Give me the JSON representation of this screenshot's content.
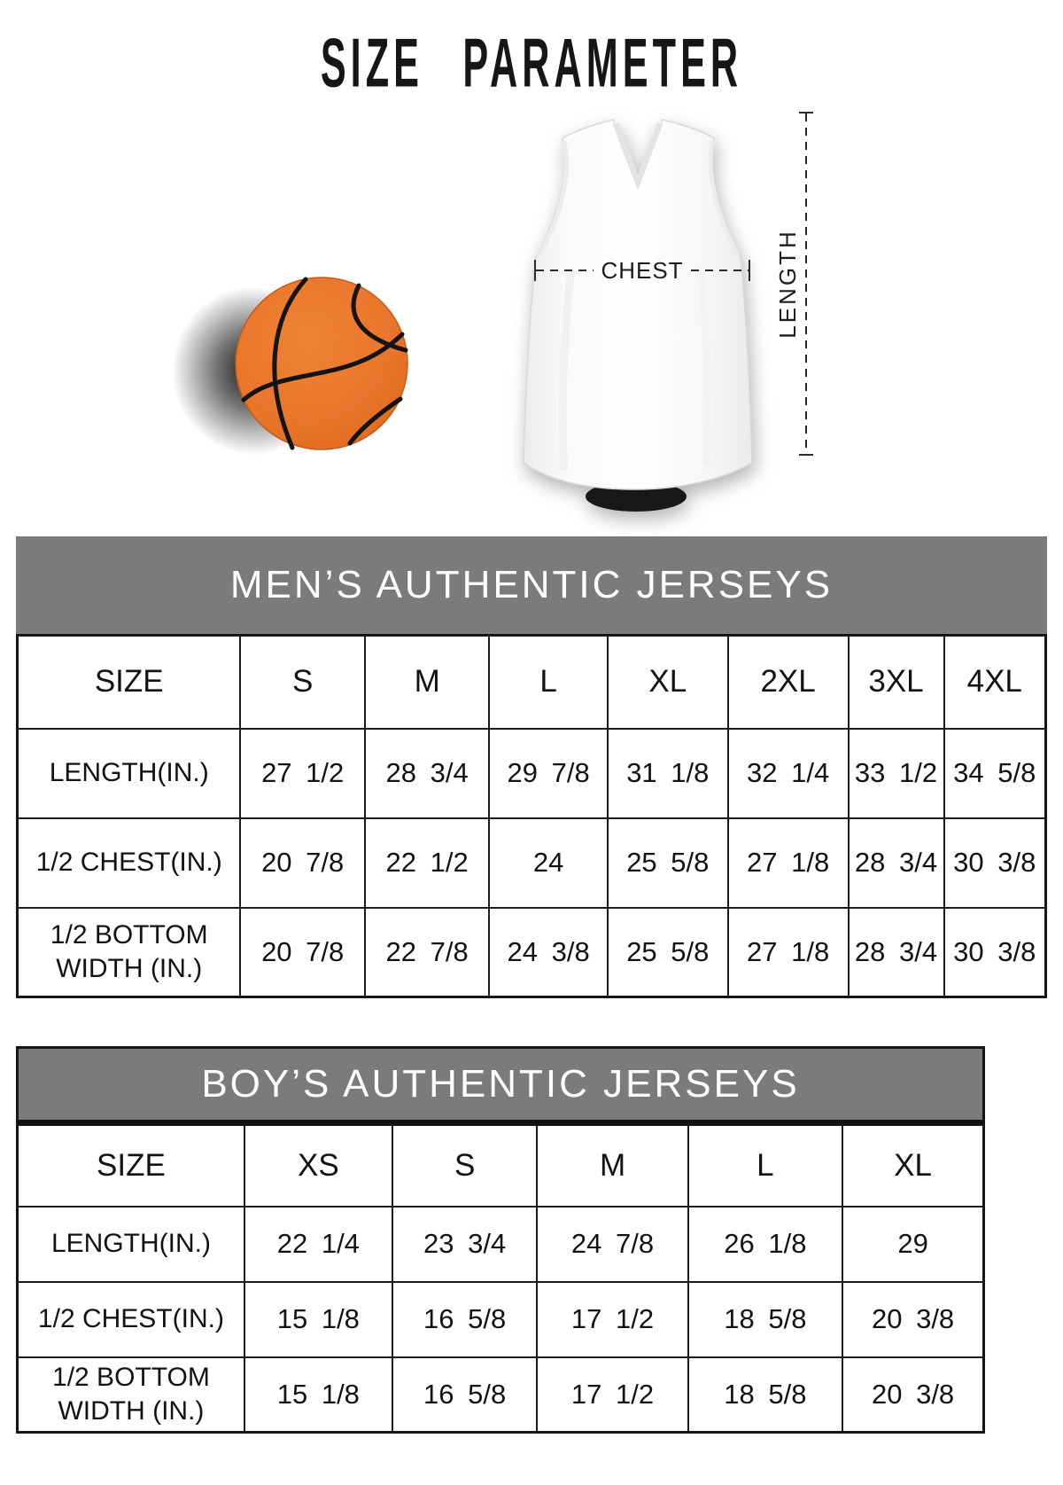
{
  "page": {
    "title": "SIZE PARAMETER",
    "background": "#ffffff"
  },
  "illustration": {
    "chest_label": "CHEST",
    "length_label": "LENGTH",
    "measure_line_color": "#2b2b2b",
    "basketball_color": "#e8742a",
    "basketball_seam_color": "#141414",
    "jersey_color": "#ffffff"
  },
  "tables": {
    "mens": {
      "title": "MEN’S AUTHENTIC JERSEYS",
      "header_bg": "#7b7b7b",
      "size_column_label": "SIZE",
      "size_columns": [
        "S",
        "M",
        "L",
        "XL",
        "2XL",
        "3XL",
        "4XL"
      ],
      "rows": [
        {
          "label": "LENGTH(IN.)",
          "values": [
            "27 1/2",
            "28 3/4",
            "29 7/8",
            "31 1/8",
            "32 1/4",
            "33 1/2",
            "34 5/8"
          ]
        },
        {
          "label": "1/2 CHEST(IN.)",
          "values": [
            "20 7/8",
            "22 1/2",
            "24",
            "25 5/8",
            "27 1/8",
            "28 3/4",
            "30 3/8"
          ]
        },
        {
          "label": "1/2 BOTTOM WIDTH (IN.)",
          "values": [
            "20 7/8",
            "22 7/8",
            "24 3/8",
            "25 5/8",
            "27 1/8",
            "28 3/4",
            "30 3/8"
          ]
        }
      ]
    },
    "boys": {
      "title": "BOY’S AUTHENTIC JERSEYS",
      "header_bg": "#7b7b7b",
      "size_column_label": "SIZE",
      "size_columns": [
        "XS",
        "S",
        "M",
        "L",
        "XL"
      ],
      "rows": [
        {
          "label": "LENGTH(IN.)",
          "values": [
            "22 1/4",
            "23 3/4",
            "24 7/8",
            "26 1/8",
            "29"
          ]
        },
        {
          "label": "1/2 CHEST(IN.)",
          "values": [
            "15 1/8",
            "16 5/8",
            "17 1/2",
            "18 5/8",
            "20 3/8"
          ]
        },
        {
          "label": "1/2 BOTTOM WIDTH (IN.)",
          "values": [
            "15 1/8",
            "16 5/8",
            "17 1/2",
            "18 5/8",
            "20 3/8"
          ]
        }
      ]
    }
  }
}
